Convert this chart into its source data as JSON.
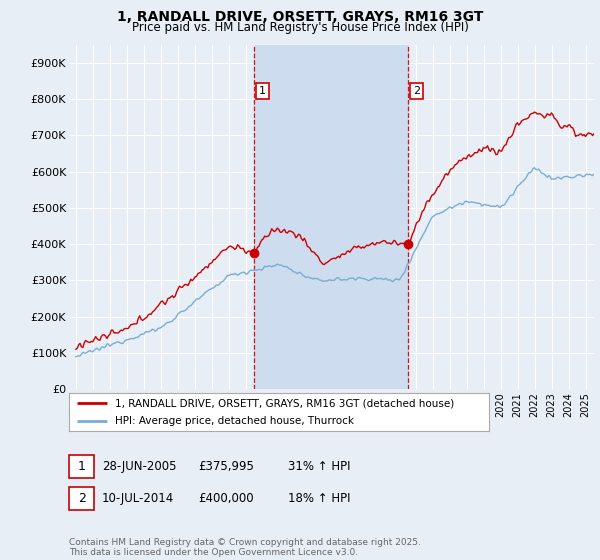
{
  "title": "1, RANDALL DRIVE, ORSETT, GRAYS, RM16 3GT",
  "subtitle": "Price paid vs. HM Land Registry's House Price Index (HPI)",
  "ylim": [
    0,
    950000
  ],
  "yticks": [
    0,
    100000,
    200000,
    300000,
    400000,
    500000,
    600000,
    700000,
    800000,
    900000
  ],
  "ytick_labels": [
    "£0",
    "£100K",
    "£200K",
    "£300K",
    "£400K",
    "£500K",
    "£600K",
    "£700K",
    "£800K",
    "£900K"
  ],
  "background_color": "#e8eef5",
  "plot_bg_color": "#e8eef5",
  "grid_color": "#ffffff",
  "red_line_color": "#cc0000",
  "blue_line_color": "#7aadd4",
  "vline_color": "#cc0000",
  "shade_color": "#cddcee",
  "sale1_x": 2005.49,
  "sale1_y": 375995,
  "sale1_label": "1",
  "sale2_x": 2014.53,
  "sale2_y": 400000,
  "sale2_label": "2",
  "legend_red": "1, RANDALL DRIVE, ORSETT, GRAYS, RM16 3GT (detached house)",
  "legend_blue": "HPI: Average price, detached house, Thurrock",
  "ann1_date": "28-JUN-2005",
  "ann1_price": "£375,995",
  "ann1_hpi": "31% ↑ HPI",
  "ann2_date": "10-JUL-2014",
  "ann2_price": "£400,000",
  "ann2_hpi": "18% ↑ HPI",
  "footer": "Contains HM Land Registry data © Crown copyright and database right 2025.\nThis data is licensed under the Open Government Licence v3.0.",
  "xlim_start": 1994.6,
  "xlim_end": 2025.5
}
